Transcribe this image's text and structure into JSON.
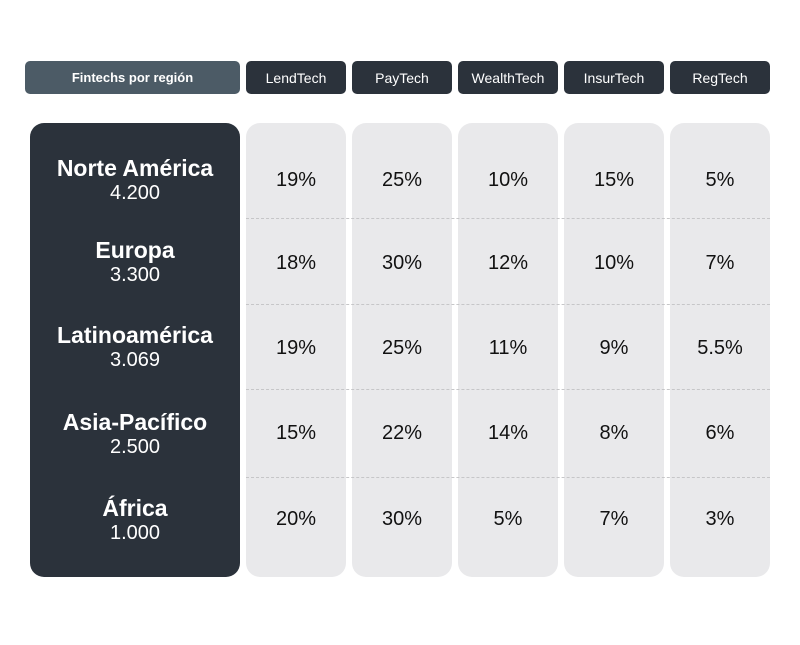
{
  "chart_data": {
    "type": "table",
    "corner_label": "Fintechs por región",
    "columns": [
      "LendTech",
      "PayTech",
      "WealthTech",
      "InsurTech",
      "RegTech"
    ],
    "rows": [
      {
        "region": "Norte América",
        "count": "4.200",
        "values": [
          "19%",
          "25%",
          "10%",
          "15%",
          "5%"
        ]
      },
      {
        "region": "Europa",
        "count": "3.300",
        "values": [
          "18%",
          "30%",
          "12%",
          "10%",
          "7%"
        ]
      },
      {
        "region": "Latinoamérica",
        "count": "3.069",
        "values": [
          "19%",
          "25%",
          "11%",
          "9%",
          "5.5%"
        ]
      },
      {
        "region": "Asia-Pacífico",
        "count": "2.500",
        "values": [
          "15%",
          "22%",
          "14%",
          "8%",
          "6%"
        ]
      },
      {
        "region": "África",
        "count": "1.000",
        "values": [
          "20%",
          "30%",
          "5%",
          "7%",
          "3%"
        ]
      }
    ]
  },
  "colors": {
    "dark": "#2b323b",
    "corner": "#4c5b66",
    "cell_bg": "#e9e9eb"
  }
}
